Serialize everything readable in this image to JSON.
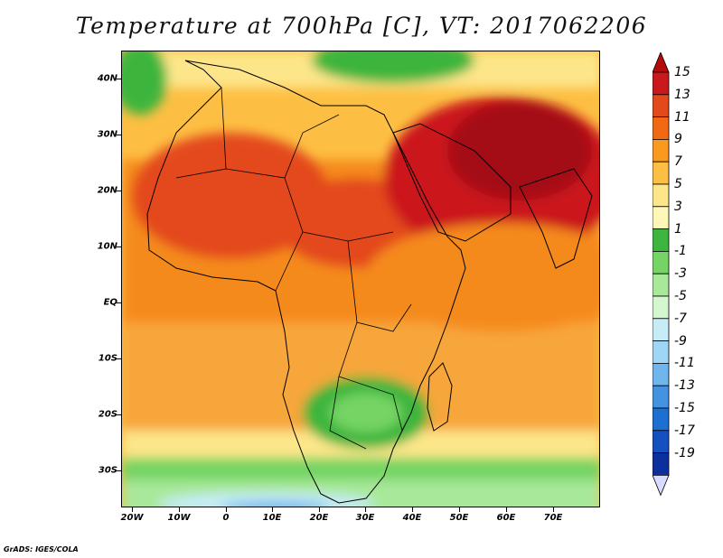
{
  "title": "Temperature at 700hPa [C], VT: 2017062206",
  "footer": "GrADS: IGES/COLA",
  "map": {
    "projection": "latlon",
    "lon_range": [
      -22,
      80
    ],
    "lat_range": [
      -36,
      45
    ],
    "lat_labels": [
      "40N",
      "30N",
      "20N",
      "10N",
      "EQ",
      "10S",
      "20S",
      "30S"
    ],
    "lat_values": [
      40,
      30,
      20,
      10,
      0,
      -10,
      -20,
      -30
    ],
    "lon_labels": [
      "20W",
      "10W",
      "0",
      "10E",
      "20E",
      "30E",
      "40E",
      "50E",
      "60E",
      "70E"
    ],
    "lon_values": [
      -20,
      -10,
      0,
      10,
      20,
      30,
      40,
      50,
      60,
      70
    ],
    "field": "temperature_700hPa",
    "units": "C"
  },
  "colorbar": {
    "labels": [
      "15",
      "13",
      "11",
      "9",
      "7",
      "5",
      "3",
      "1",
      "-1",
      "-3",
      "-5",
      "-7",
      "-9",
      "-11",
      "-13",
      "-15",
      "-17",
      "-19"
    ],
    "colors": [
      "#a50f15",
      "#cb181d",
      "#e34a1b",
      "#f16913",
      "#f99a1e",
      "#fdbf43",
      "#fde68a",
      "#fff7b8",
      "#3eb53e",
      "#74d464",
      "#a8e89a",
      "#d4f7d0",
      "#c6ecf7",
      "#9fd6f5",
      "#6fb5ee",
      "#4493e0",
      "#1e6fd2",
      "#1450c0",
      "#0b2f9c",
      "#06176e"
    ],
    "top_arrow_color": "#b40c0c",
    "bottom_arrow_color": "#d8dcff"
  }
}
